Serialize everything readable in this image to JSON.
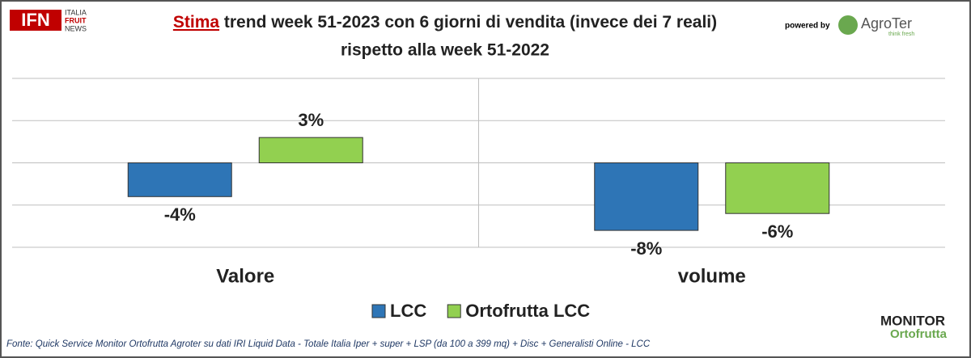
{
  "logo": {
    "mark": "IFN",
    "lines": [
      "ITALIA",
      "FRUIT",
      "NEWS"
    ]
  },
  "sponsor": {
    "label": "powered by",
    "name": "AgroTer",
    "tagline": "think fresh"
  },
  "monitor_logo": {
    "top": "MONITOR",
    "bottom": "Ortofrutta"
  },
  "chart_data": {
    "type": "bar",
    "title_highlight": "Stima",
    "title": "trend week 51-2023 con 6 giorni di vendita (invece dei 7 reali)",
    "subtitle": "rispetto alla week 51-2022",
    "categories": [
      "Valore",
      "volume"
    ],
    "series": [
      {
        "name": "LCC",
        "color": "#2e75b6",
        "values": [
          -4,
          -8
        ],
        "value_labels": [
          "-4%",
          "-8%"
        ]
      },
      {
        "name": "Ortofrutta LCC",
        "color": "#92d050",
        "values": [
          3,
          -6
        ],
        "value_labels": [
          "3%",
          "-6%"
        ]
      }
    ],
    "ylim": [
      -10,
      10
    ],
    "yticks": [
      -10,
      -5,
      0,
      5,
      10
    ],
    "grid": true,
    "source": "Fonte: Quick Service Monitor Ortofrutta Agroter su dati IRI Liquid Data - Totale Italia Iper + super + LSP (da 100 a 399 mq) + Disc + Generalisti Online - LCC"
  }
}
